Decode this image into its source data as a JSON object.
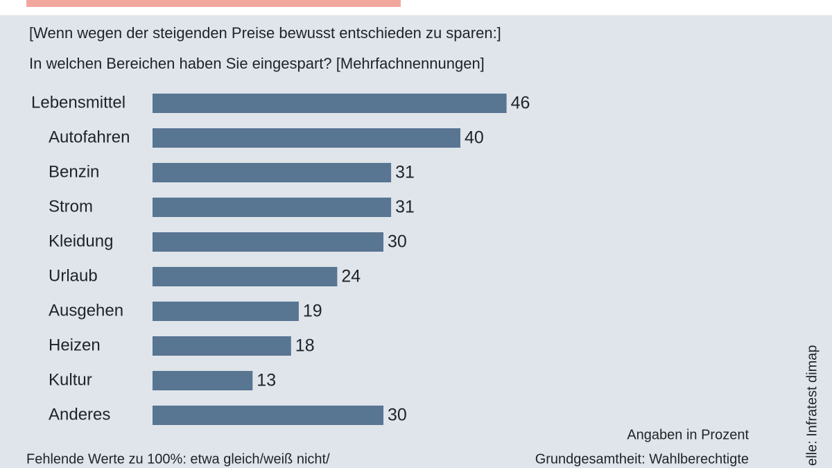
{
  "chart_data": {
    "type": "bar",
    "subtitle": [
      "[Wenn wegen der steigenden Preise bewusst entschieden zu sparen:]",
      "In welchen Bereichen haben Sie eingespart? [Mehrfachnennungen]"
    ],
    "categories": [
      "Lebensmittel",
      "Autofahren",
      "Benzin",
      "Strom",
      "Kleidung",
      "Urlaub",
      "Ausgehen",
      "Heizen",
      "Kultur",
      "Anderes"
    ],
    "values": [
      46,
      40,
      31,
      31,
      30,
      24,
      19,
      18,
      13,
      30
    ],
    "color": "#587592",
    "unit_note": "Angaben in Prozent",
    "base_note": "Grundgesamtheit: Wahlberechtigte",
    "missing_note": "Fehlende Werte zu 100%: etwa gleich/weiß nicht/",
    "source": "elle: Infratest dimap"
  }
}
